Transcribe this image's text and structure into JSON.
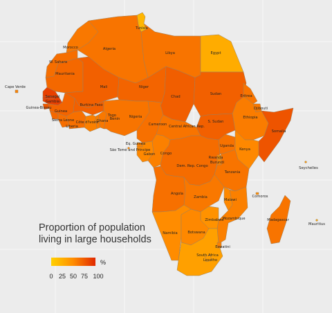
{
  "legend": {
    "title_line1": "Proportion of population",
    "title_line2": "living in large households",
    "unit": "%",
    "ticks": [
      "0",
      "25",
      "50",
      "75",
      "100"
    ],
    "gradient_colors": [
      "#ffd000",
      "#ffb000",
      "#ff8c00",
      "#f05a00",
      "#e02800"
    ]
  },
  "countries": [
    {
      "id": "tunisia",
      "label": "Tunisia",
      "value": 20
    },
    {
      "id": "morocco",
      "label": "Morocco",
      "value": 60
    },
    {
      "id": "algeria",
      "label": "Algeria",
      "value": 62
    },
    {
      "id": "libya",
      "label": "Libya",
      "value": 62
    },
    {
      "id": "egypt",
      "label": "Egypt",
      "value": 28
    },
    {
      "id": "w-sahara",
      "label": "W. Sahara",
      "value": 65
    },
    {
      "id": "mauritania",
      "label": "Mauritania",
      "value": 68
    },
    {
      "id": "mali",
      "label": "Mali",
      "value": 72
    },
    {
      "id": "niger",
      "label": "Niger",
      "value": 70
    },
    {
      "id": "chad",
      "label": "Chad",
      "value": 73
    },
    {
      "id": "sudan",
      "label": "Sudan",
      "value": 72
    },
    {
      "id": "eritrea",
      "label": "Eritrea",
      "value": 62
    },
    {
      "id": "djibouti",
      "label": "Djibouti",
      "value": 60
    },
    {
      "id": "ethiopia",
      "label": "Ethiopia",
      "value": 58
    },
    {
      "id": "somalia",
      "label": "Somalia",
      "value": 78
    },
    {
      "id": "senegal",
      "label": "Senegal",
      "value": 88
    },
    {
      "id": "gambia",
      "label": "Gambia",
      "value": 90
    },
    {
      "id": "guinea-bissau",
      "label": "Guinea-Bissau",
      "value": 76
    },
    {
      "id": "guinea",
      "label": "Guinea",
      "value": 70
    },
    {
      "id": "sierra-leone",
      "label": "Sierra Leone",
      "value": 68
    },
    {
      "id": "liberia",
      "label": "Liberia",
      "value": 65
    },
    {
      "id": "cote-divoire",
      "label": "Côte d'Ivoire",
      "value": 64
    },
    {
      "id": "burkina-faso",
      "label": "Burkina Faso",
      "value": 72
    },
    {
      "id": "ghana",
      "label": "Ghana",
      "value": 56
    },
    {
      "id": "togo",
      "label": "Togo",
      "value": 58
    },
    {
      "id": "benin",
      "label": "Benin",
      "value": 60
    },
    {
      "id": "nigeria",
      "label": "Nigeria",
      "value": 62
    },
    {
      "id": "cameroon",
      "label": "Cameroon",
      "value": 64
    },
    {
      "id": "central-african-rep",
      "label": "Central African Rep.",
      "value": 62
    },
    {
      "id": "s-sudan",
      "label": "S. Sudan",
      "value": 72
    },
    {
      "id": "eq-guinea",
      "label": "Eq. Guinea",
      "value": 55
    },
    {
      "id": "sao-tome",
      "label": "São Tomé and Principe",
      "value": 50
    },
    {
      "id": "gabon",
      "label": "Gabon",
      "value": 52
    },
    {
      "id": "congo",
      "label": "Congo",
      "value": 56
    },
    {
      "id": "dem-rep-congo",
      "label": "Dem. Rep. Congo",
      "value": 66
    },
    {
      "id": "uganda",
      "label": "Uganda",
      "value": 63
    },
    {
      "id": "kenya",
      "label": "Kenya",
      "value": 52
    },
    {
      "id": "rwanda",
      "label": "Rwanda",
      "value": 46
    },
    {
      "id": "burundi",
      "label": "Burundi",
      "value": 54
    },
    {
      "id": "tanzania",
      "label": "Tanzania",
      "value": 62
    },
    {
      "id": "angola",
      "label": "Angola",
      "value": 64
    },
    {
      "id": "zambia",
      "label": "Zambia",
      "value": 60
    },
    {
      "id": "malawi",
      "label": "Malawi",
      "value": 52
    },
    {
      "id": "mozambique",
      "label": "Mozambique",
      "value": 56
    },
    {
      "id": "zimbabwe",
      "label": "Zimbabwe",
      "value": 46
    },
    {
      "id": "namibia",
      "label": "Namibia",
      "value": 50
    },
    {
      "id": "botswana",
      "label": "Botswana",
      "value": 52
    },
    {
      "id": "eswatini",
      "label": "Eswatini",
      "value": 56
    },
    {
      "id": "lesotho",
      "label": "Lesotho",
      "value": 38
    },
    {
      "id": "south-africa",
      "label": "South Africa",
      "value": 36
    },
    {
      "id": "madagascar",
      "label": "Madagascar",
      "value": 62
    },
    {
      "id": "cape-verde",
      "label": "Cape Verde",
      "value": 55
    },
    {
      "id": "comoros",
      "label": "Comoros",
      "value": 50
    },
    {
      "id": "seychelles",
      "label": "Seychelles",
      "value": 40
    },
    {
      "id": "mauritius",
      "label": "Mauritius",
      "value": 30
    }
  ]
}
